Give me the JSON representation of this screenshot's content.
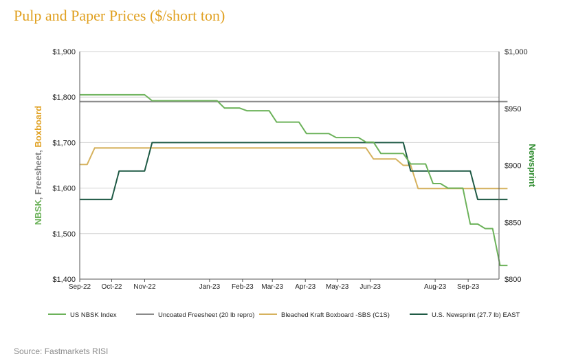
{
  "title": "Pulp and Paper Prices ($/short ton)",
  "source": "Source:  Fastmarkets RISI",
  "colors": {
    "title": "#e0a020",
    "nbsk": "#6cb25a",
    "freesheet": "#8a8a8a",
    "boxboard": "#d6b25e",
    "newsprint": "#1f5a45",
    "left_axis_nbsk": "#6cb25a",
    "left_axis_freesheet": "#808080",
    "left_axis_boxboard": "#e0a020",
    "right_axis": "#2e8b2e"
  },
  "chart_data": {
    "type": "line",
    "title": "Pulp and Paper Prices ($/short ton)",
    "ylabel_left_parts": [
      {
        "text": "NBSK",
        "color_key": "left_axis_nbsk"
      },
      {
        "text": ", ",
        "color_key": "left_axis_freesheet"
      },
      {
        "text": "Freesheet",
        "color_key": "left_axis_freesheet"
      },
      {
        "text": ", ",
        "color_key": "left_axis_freesheet"
      },
      {
        "text": "Boxboard",
        "color_key": "left_axis_boxboard"
      }
    ],
    "ylabel_right": "Newsprint",
    "x_ticks": [
      "Sep-22",
      "Oct-22",
      "Nov-22",
      "Jan-23",
      "Feb-23",
      "Mar-23",
      "Apr-23",
      "May-23",
      "Jun-23",
      "Aug-23",
      "Sep-23"
    ],
    "x_tick_dates": [
      "2022-09-01",
      "2022-10-01",
      "2022-11-01",
      "2023-01-01",
      "2023-02-01",
      "2023-03-01",
      "2023-04-01",
      "2023-05-01",
      "2023-06-01",
      "2023-08-01",
      "2023-09-01"
    ],
    "x_range": [
      "2022-09-01",
      "2023-09-30"
    ],
    "y_left_ticks": [
      "$1,400",
      "$1,500",
      "$1,600",
      "$1,700",
      "$1,800",
      "$1,900"
    ],
    "y_left_range": [
      1400,
      1900
    ],
    "y_right_ticks": [
      "$800",
      "$850",
      "$900",
      "$950",
      "$1,000"
    ],
    "y_right_range": [
      800,
      1000
    ],
    "grid": "horizontal",
    "legend_position": "bottom",
    "series": [
      {
        "name": "US NBSK Index",
        "color_key": "nbsk",
        "axis": "left",
        "points": [
          [
            "2022-09-01",
            1805
          ],
          [
            "2022-11-01",
            1805
          ],
          [
            "2022-11-08",
            1792
          ],
          [
            "2023-01-08",
            1792
          ],
          [
            "2023-01-15",
            1776
          ],
          [
            "2023-01-29",
            1776
          ],
          [
            "2023-02-05",
            1770
          ],
          [
            "2023-02-26",
            1770
          ],
          [
            "2023-03-05",
            1745
          ],
          [
            "2023-03-26",
            1745
          ],
          [
            "2023-04-02",
            1720
          ],
          [
            "2023-04-23",
            1720
          ],
          [
            "2023-04-30",
            1711
          ],
          [
            "2023-05-21",
            1711
          ],
          [
            "2023-05-28",
            1701
          ],
          [
            "2023-06-04",
            1701
          ],
          [
            "2023-06-11",
            1676
          ],
          [
            "2023-07-02",
            1676
          ],
          [
            "2023-07-09",
            1653
          ],
          [
            "2023-07-23",
            1653
          ],
          [
            "2023-07-30",
            1610
          ],
          [
            "2023-08-06",
            1610
          ],
          [
            "2023-08-13",
            1600
          ],
          [
            "2023-08-27",
            1600
          ],
          [
            "2023-09-03",
            1521
          ],
          [
            "2023-09-10",
            1521
          ],
          [
            "2023-09-17",
            1511
          ],
          [
            "2023-09-24",
            1511
          ],
          [
            "2023-10-01",
            1430
          ],
          [
            "2023-10-08",
            1430
          ]
        ]
      },
      {
        "name": "Uncoated Freesheet (20 lb repro)",
        "color_key": "freesheet",
        "axis": "left",
        "points": [
          [
            "2022-09-01",
            1790
          ],
          [
            "2023-10-08",
            1790
          ]
        ]
      },
      {
        "name": "Bleached Kraft Boxboard -SBS (C1S)",
        "color_key": "boxboard",
        "axis": "left",
        "points": [
          [
            "2022-09-01",
            1652
          ],
          [
            "2022-09-08",
            1652
          ],
          [
            "2022-09-15",
            1688
          ],
          [
            "2023-05-28",
            1688
          ],
          [
            "2023-06-04",
            1664
          ],
          [
            "2023-06-25",
            1664
          ],
          [
            "2023-07-02",
            1650
          ],
          [
            "2023-07-09",
            1650
          ],
          [
            "2023-07-16",
            1599
          ],
          [
            "2023-10-08",
            1599
          ]
        ]
      },
      {
        "name": "U.S. Newsprint (27.7 lb) EAST",
        "color_key": "newsprint",
        "axis": "right",
        "points": [
          [
            "2022-09-01",
            870
          ],
          [
            "2022-10-01",
            870
          ],
          [
            "2022-10-08",
            895
          ],
          [
            "2022-11-01",
            895
          ],
          [
            "2022-11-08",
            920
          ],
          [
            "2023-07-02",
            920
          ],
          [
            "2023-07-09",
            895
          ],
          [
            "2023-09-03",
            895
          ],
          [
            "2023-09-10",
            870
          ],
          [
            "2023-10-08",
            870
          ]
        ]
      }
    ]
  }
}
